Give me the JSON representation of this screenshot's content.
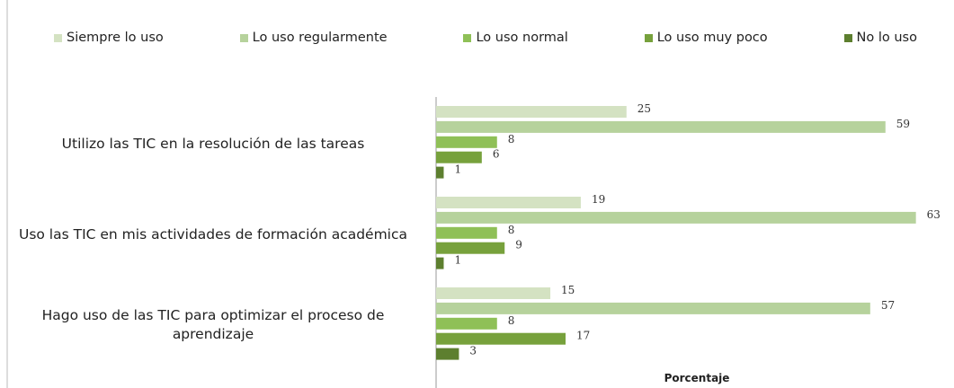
{
  "chart_data": {
    "type": "bar",
    "orientation": "horizontal",
    "categories": [
      "Utilizo las TIC en la resolución de las tareas",
      "Uso las TIC en mis actividades de formación académica",
      "Hago uso de las TIC para optimizar el proceso de aprendizaje"
    ],
    "series": [
      {
        "name": "Siempre lo uso",
        "color": "#d4e2c2",
        "values": [
          25,
          19,
          15
        ]
      },
      {
        "name": "Lo uso regularmente",
        "color": "#b6d29c",
        "values": [
          59,
          63,
          57
        ]
      },
      {
        "name": "Lo uso normal",
        "color": "#8fc057",
        "values": [
          8,
          8,
          8
        ]
      },
      {
        "name": "Lo uso muy poco",
        "color": "#77a13c",
        "values": [
          6,
          9,
          17
        ]
      },
      {
        "name": "No lo uso",
        "color": "#5d7f2f",
        "values": [
          1,
          1,
          3
        ]
      }
    ],
    "xlim": [
      0,
      68
    ],
    "xlabel": "Porcentaje",
    "legend": "top"
  }
}
